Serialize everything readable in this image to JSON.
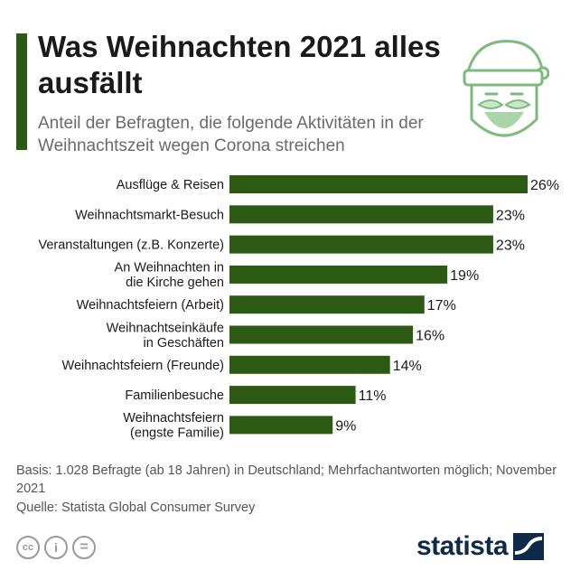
{
  "header": {
    "title": "Was Weihnachten 2021 alles ausfällt",
    "subtitle": "Anteil der Befragten, die folgende Aktivitäten in der Weihnachtszeit wegen Corona streichen"
  },
  "chart_data": {
    "type": "bar",
    "orientation": "horizontal",
    "categories": [
      "Ausflüge & Reisen",
      "Weihnachtsmarkt-Besuch",
      "Veranstaltungen (z.B. Konzerte)",
      "An Weihnachten in\ndie Kirche gehen",
      "Weihnachtsfeiern (Arbeit)",
      "Weihnachtseinkäufe\nin Geschäften",
      "Weihnachtsfeiern (Freunde)",
      "Familienbesuche",
      "Weihnachtsfeiern\n(engste Familie)"
    ],
    "values": [
      26,
      23,
      23,
      19,
      17,
      16,
      14,
      11,
      9
    ],
    "value_suffix": "%",
    "bar_color": "#2d5a12",
    "xlim": [
      0,
      26
    ],
    "grid": false,
    "legend": "none"
  },
  "footer": {
    "basis": "Basis: 1.028 Befragte (ab 18 Jahren) in Deutschland; Mehrfachantworten möglich; November 2021",
    "source": "Quelle: Statista Global Consumer Survey",
    "license_icons": [
      "cc-icon",
      "by-icon",
      "nd-icon"
    ],
    "license_glyphs": [
      "cc",
      "i",
      "="
    ],
    "logo": "statista"
  }
}
